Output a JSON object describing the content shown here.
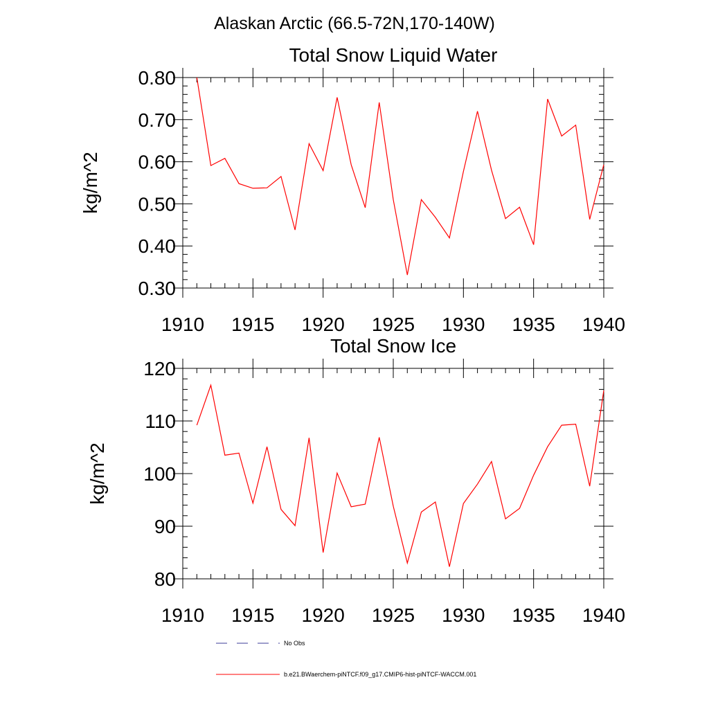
{
  "figure_title": "Alaskan Arctic (66.5-72N,170-140W)",
  "colors": {
    "model_line": "#ff0000",
    "obs_line": "#3b3b9a",
    "axes": "#000000"
  },
  "legend": [
    {
      "label": "No Obs",
      "style": "dashed",
      "color": "#3b3b9a"
    },
    {
      "label": "b.e21.BWaerchem-piNTCF.f09_g17.CMIP6-hist-piNTCF-WACCM.001",
      "style": "solid",
      "color": "#ff0000"
    }
  ],
  "chart_data": [
    {
      "type": "line",
      "title": "Total Snow Liquid Water",
      "xlabel": "",
      "ylabel": "kg/m^2",
      "xlim": [
        1910,
        1940
      ],
      "ylim": [
        0.3,
        0.8
      ],
      "xticks": [
        "1910",
        "1915",
        "1920",
        "1925",
        "1930",
        "1935",
        "1940"
      ],
      "yticks": [
        "0.30",
        "0.40",
        "0.50",
        "0.60",
        "0.70",
        "0.80"
      ],
      "grid": false,
      "x": [
        1911,
        1912,
        1913,
        1914,
        1915,
        1916,
        1917,
        1918,
        1919,
        1920,
        1921,
        1922,
        1923,
        1924,
        1925,
        1926,
        1927,
        1928,
        1929,
        1930,
        1931,
        1932,
        1933,
        1934,
        1935,
        1936,
        1937,
        1938,
        1939,
        1940
      ],
      "series": [
        {
          "name": "b.e21.BWaerchem-piNTCF.f09_g17.CMIP6-hist-piNTCF-WACCM.001",
          "values": [
            0.8,
            0.591,
            0.608,
            0.548,
            0.537,
            0.538,
            0.565,
            0.438,
            0.643,
            0.579,
            0.753,
            0.593,
            0.491,
            0.741,
            0.51,
            0.331,
            0.51,
            0.468,
            0.419,
            0.577,
            0.72,
            0.58,
            0.465,
            0.492,
            0.403,
            0.749,
            0.661,
            0.687,
            0.463,
            0.593
          ]
        }
      ]
    },
    {
      "type": "line",
      "title": "Total Snow Ice",
      "xlabel": "",
      "ylabel": "kg/m^2",
      "xlim": [
        1910,
        1940
      ],
      "ylim": [
        80,
        120
      ],
      "xticks": [
        "1910",
        "1915",
        "1920",
        "1925",
        "1930",
        "1935",
        "1940"
      ],
      "yticks": [
        "80",
        "90",
        "100",
        "110",
        "120"
      ],
      "grid": false,
      "x": [
        1911,
        1912,
        1913,
        1914,
        1915,
        1916,
        1917,
        1918,
        1919,
        1920,
        1921,
        1922,
        1923,
        1924,
        1925,
        1926,
        1927,
        1928,
        1929,
        1930,
        1931,
        1932,
        1933,
        1934,
        1935,
        1936,
        1937,
        1938,
        1939,
        1940
      ],
      "series": [
        {
          "name": "b.e21.BWaerchem-piNTCF.f09_g17.CMIP6-hist-piNTCF-WACCM.001",
          "values": [
            109.2,
            116.8,
            103.5,
            103.9,
            94.4,
            105.1,
            93.2,
            90.1,
            106.8,
            85.0,
            100.1,
            93.7,
            94.2,
            106.9,
            93.8,
            83.0,
            92.7,
            94.6,
            82.3,
            94.3,
            98.0,
            102.3,
            91.4,
            93.4,
            99.7,
            105.1,
            109.2,
            109.4,
            97.6,
            115.8
          ]
        }
      ]
    }
  ]
}
